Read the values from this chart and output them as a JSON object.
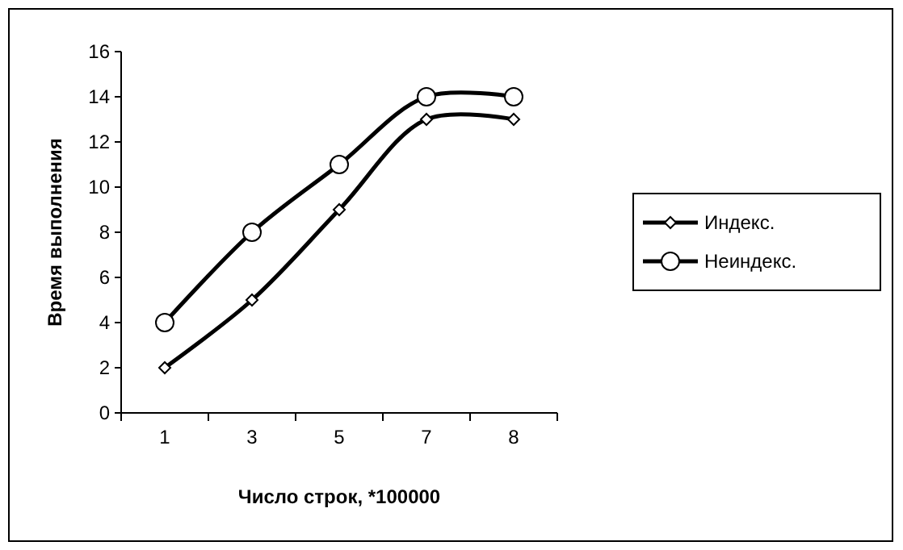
{
  "chart_data": {
    "type": "line",
    "xlabel": "Число строк, *100000",
    "ylabel": "Время выполнения",
    "categories": [
      "1",
      "3",
      "5",
      "7",
      "8"
    ],
    "series": [
      {
        "name": "Индекс.",
        "color": "#000000",
        "values": [
          2,
          5,
          9,
          13,
          13
        ],
        "marker": "diamond"
      },
      {
        "name": "Неиндекс.",
        "color": "#000000",
        "values": [
          4,
          8,
          11,
          14,
          14
        ],
        "marker": "circle"
      }
    ],
    "ylim": [
      0,
      16
    ],
    "yticks": [
      0,
      2,
      4,
      6,
      8,
      10,
      12,
      14,
      16
    ],
    "grid": false,
    "legend": "right",
    "line_style": "solid"
  }
}
